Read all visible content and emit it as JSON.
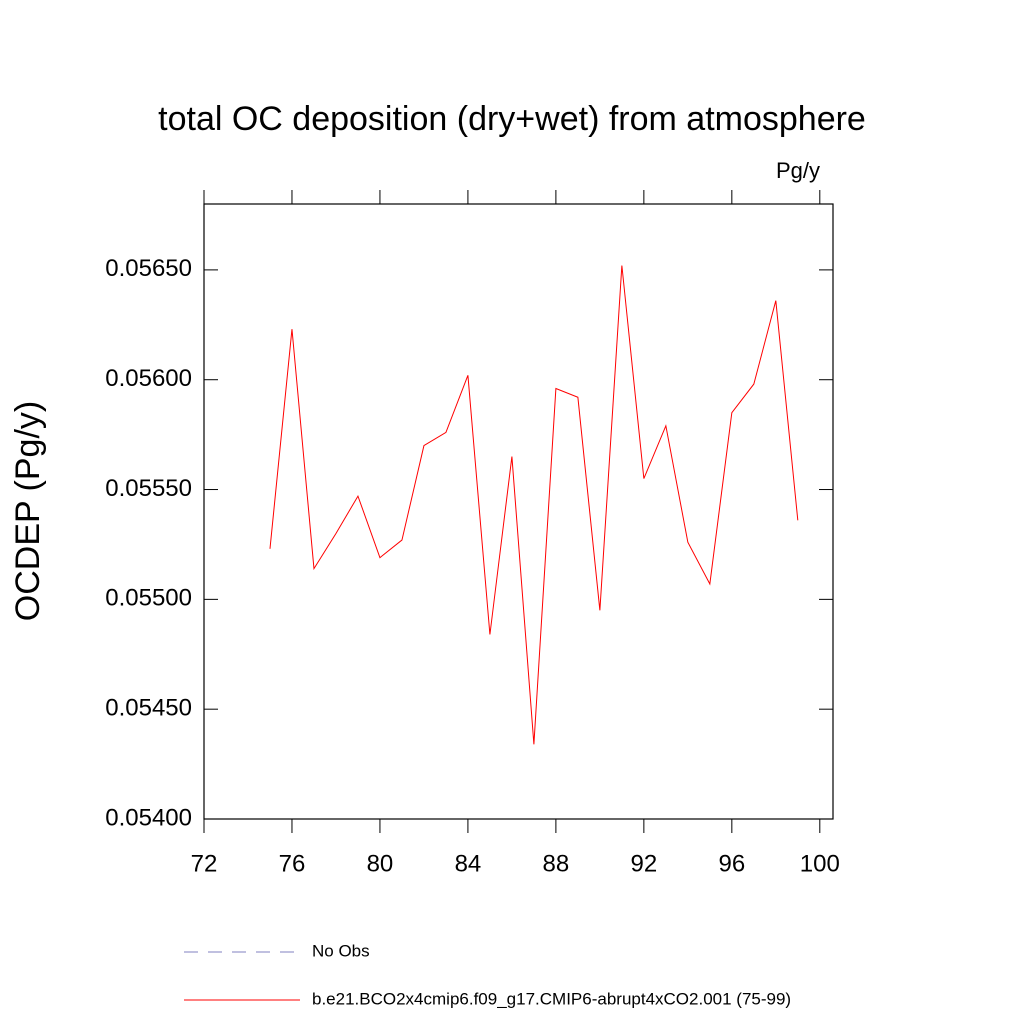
{
  "chart_data": {
    "type": "line",
    "title": "total OC deposition (dry+wet) from atmosphere",
    "units": "Pg/y",
    "ylabel": "OCDEP  (Pg/y)",
    "x": [
      75,
      76,
      77,
      78,
      79,
      80,
      81,
      82,
      83,
      84,
      85,
      86,
      87,
      88,
      89,
      90,
      91,
      92,
      93,
      94,
      95,
      96,
      97,
      98,
      99
    ],
    "series": [
      {
        "name": "No Obs",
        "color": "#8080c0",
        "dash": "dashed",
        "values": [
          null,
          null,
          null,
          null,
          null,
          null,
          null,
          null,
          null,
          null,
          null,
          null,
          null,
          null,
          null,
          null,
          null,
          null,
          null,
          null,
          null,
          null,
          null,
          null,
          null
        ]
      },
      {
        "name": "b.e21.BCO2x4cmip6.f09_g17.CMIP6-abrupt4xCO2.001 (75-99)",
        "color": "#ff0000",
        "dash": "solid",
        "values": [
          0.05523,
          0.05623,
          0.05514,
          0.0553,
          0.05547,
          0.05519,
          0.05527,
          0.0557,
          0.05576,
          0.05602,
          0.05484,
          0.05565,
          0.05434,
          0.05596,
          0.05592,
          0.05495,
          0.05652,
          0.05555,
          0.05579,
          0.05526,
          0.05507,
          0.05585,
          0.05598,
          0.05636,
          0.05536
        ]
      }
    ],
    "xlim": [
      72,
      100.6
    ],
    "xticks": [
      72,
      76,
      80,
      84,
      88,
      92,
      96,
      100
    ],
    "ylim": [
      0.054,
      0.0568
    ],
    "yticks": [
      {
        "value": 0.054,
        "label": "0.05400"
      },
      {
        "value": 0.0545,
        "label": "0.05450"
      },
      {
        "value": 0.055,
        "label": "0.05500"
      },
      {
        "value": 0.0555,
        "label": "0.05550"
      },
      {
        "value": 0.056,
        "label": "0.05600"
      },
      {
        "value": 0.0565,
        "label": "0.05650"
      }
    ],
    "grid": false
  }
}
